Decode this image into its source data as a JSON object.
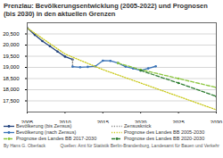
{
  "chart_data": {
    "type": "line",
    "title": "Prenzlau: Bevölkerungsentwicklung (2005-2022) und Prognosen (bis 2030) in den aktuellen Grenzen",
    "xlim": [
      2005,
      2030
    ],
    "xticks": [
      2005,
      2010,
      2015,
      2020,
      2025,
      2030
    ],
    "ylim": [
      17000,
      21000
    ],
    "yticks": [
      {
        "value": 17500,
        "label": "17,500"
      },
      {
        "value": 18000,
        "label": "18,000"
      },
      {
        "value": 18500,
        "label": "18,500"
      },
      {
        "value": 19000,
        "label": "19,000"
      },
      {
        "value": 19500,
        "label": "19,500"
      },
      {
        "value": 20000,
        "label": "20,000"
      },
      {
        "value": 20500,
        "label": "20,500"
      }
    ],
    "grid": true,
    "legend": "bottom",
    "series": [
      {
        "name": "Bevölkerung (bis Zensus)",
        "color": "#1f3f7a",
        "line_style": "solid",
        "marker": "circle",
        "x": [
          2005,
          2006,
          2007,
          2008,
          2009,
          2010,
          2011
        ],
        "values": [
          20767,
          20456,
          20178,
          19953,
          19711,
          19485,
          19353
        ]
      },
      {
        "name": "Zensusknick",
        "color": "#8c8c8c",
        "line_style": "dotted",
        "x": [
          2011,
          2011
        ],
        "values": [
          19353,
          19035
        ]
      },
      {
        "name": "Bevölkerung (nach Zensus)",
        "color": "#3a73b8",
        "line_style": "solid",
        "marker": "circle",
        "x": [
          2011,
          2012,
          2013,
          2014,
          2015,
          2016,
          2017,
          2018,
          2019,
          2020,
          2021,
          2022
        ],
        "values": [
          19035,
          19007,
          19024,
          19052,
          19302,
          19293,
          19194,
          19036,
          18951,
          18861,
          18955,
          19050
        ]
      },
      {
        "name": "Prognose des Landes BB 2005-2030",
        "color": "#c9c91a",
        "line_style": "dotted",
        "x": [
          2005,
          2010,
          2015,
          2020,
          2025,
          2030
        ],
        "values": [
          20767,
          19600,
          18900,
          18300,
          17700,
          17100
        ]
      },
      {
        "name": "Prognose des Landes BB 2017-2030",
        "color": "#8cc63f",
        "line_style": "dashed",
        "marker": "circle",
        "x": [
          2017,
          2020,
          2025,
          2030
        ],
        "values": [
          19194,
          18900,
          18500,
          18100
        ]
      },
      {
        "name": "Prognose des Landes BB 2020-2030",
        "color": "#2e7d32",
        "line_style": "dashed",
        "marker": "circle",
        "x": [
          2020,
          2025,
          2030
        ],
        "values": [
          18861,
          18300,
          17700
        ]
      }
    ],
    "annotations": [
      "By Hans G. Oberlack",
      "Quellen: Amt für Statistik Berlin-Brandenburg, Landesamt für Bauen und Verkehr"
    ]
  }
}
